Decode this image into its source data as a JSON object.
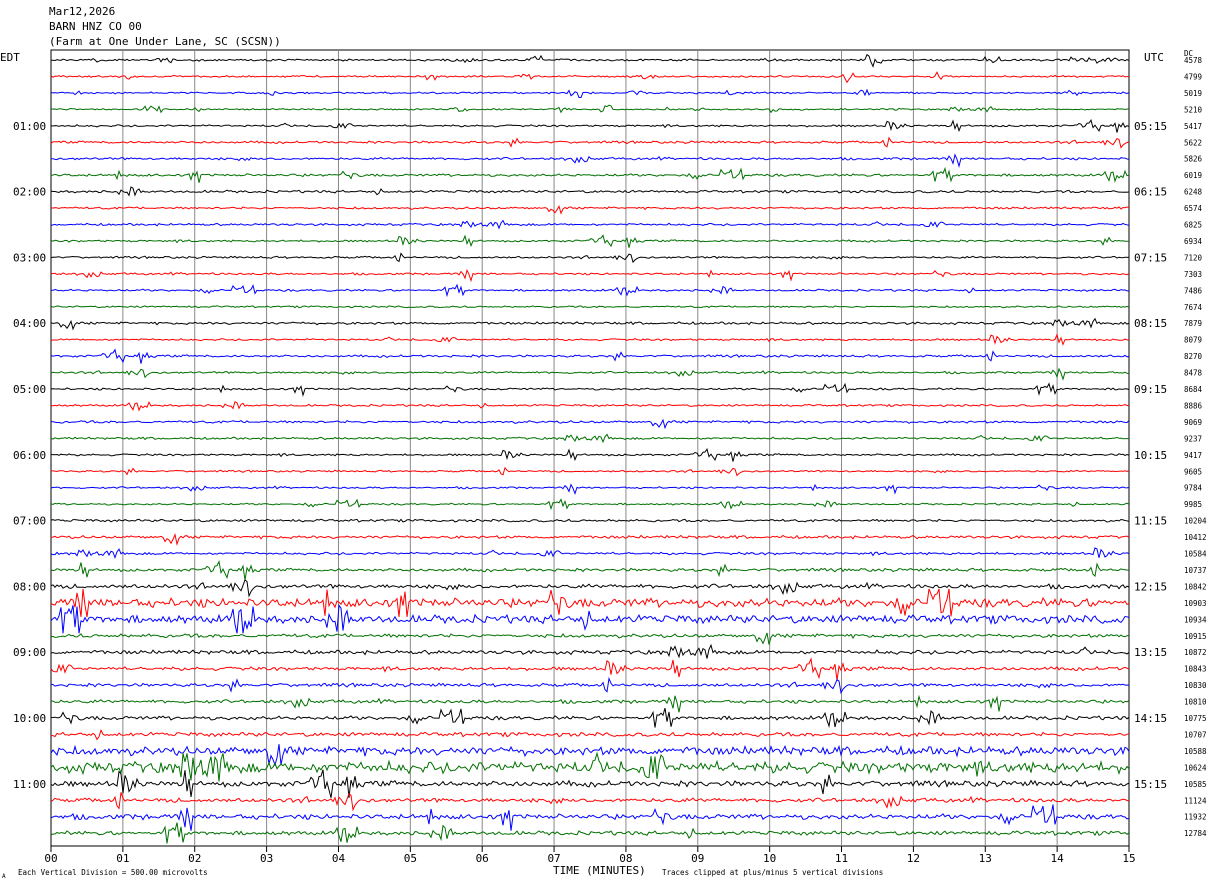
{
  "header": {
    "date": "Mar12,2026",
    "station": "BARN HNZ CO 00",
    "location": "(Farm at One Under Lane, SC (SCSN))"
  },
  "labels": {
    "left_tz": "EDT",
    "right_tz": "UTC",
    "dc": "DC",
    "xlabel": "TIME (MINUTES)",
    "scale_note": "Each Vertical Division =  500.00 microvolts",
    "clip_note": "Traces clipped at plus/minus 5 vertical divisions",
    "corner_mark": "A"
  },
  "colors": [
    "#000000",
    "#ff0000",
    "#0000ff",
    "#007000"
  ],
  "chart_data": {
    "type": "line",
    "title": "",
    "xlabel": "TIME (MINUTES)",
    "x_ticks": [
      "00",
      "01",
      "02",
      "03",
      "04",
      "05",
      "06",
      "07",
      "08",
      "09",
      "10",
      "11",
      "12",
      "13",
      "14",
      "15"
    ],
    "xlim": [
      0,
      15
    ],
    "grid": true,
    "left_hour_labels": [
      "01:00",
      "02:00",
      "03:00",
      "04:00",
      "05:00",
      "06:00",
      "07:00",
      "08:00",
      "09:00",
      "10:00",
      "11:00"
    ],
    "right_hour_labels": [
      "05:15",
      "06:15",
      "07:15",
      "08:15",
      "09:15",
      "10:15",
      "11:15",
      "12:15",
      "13:15",
      "14:15",
      "15:15"
    ],
    "trace_dc_values": [
      "4578",
      "4799",
      "5019",
      "5210",
      "5417",
      "5622",
      "5826",
      "6019",
      "6248",
      "6574",
      "6825",
      "6934",
      "7120",
      "7303",
      "7486",
      "7674",
      "7879",
      "8079",
      "8270",
      "8478",
      "8684",
      "8886",
      "9069",
      "9237",
      "9417",
      "9605",
      "9784",
      "9985",
      "10204",
      "10412",
      "10584",
      "10737",
      "10842",
      "10903",
      "10934",
      "10915",
      "10872",
      "10843",
      "10830",
      "10810",
      "10775",
      "10707",
      "10588",
      "10624",
      "10585",
      "11124",
      "11932",
      "12784"
    ],
    "trace_amplitude": [
      0.8,
      0.7,
      0.7,
      0.6,
      0.8,
      0.9,
      0.9,
      1.0,
      1.0,
      0.9,
      0.9,
      0.8,
      0.8,
      0.8,
      0.8,
      0.7,
      1.0,
      0.8,
      0.9,
      0.8,
      0.8,
      0.8,
      1.0,
      0.9,
      0.8,
      0.7,
      0.7,
      0.7,
      1.0,
      1.2,
      1.0,
      1.2,
      1.6,
      3.5,
      3.2,
      1.5,
      1.6,
      1.4,
      1.3,
      1.3,
      1.5,
      1.6,
      3.5,
      4.5,
      2.2,
      1.6,
      2.0,
      1.6
    ]
  }
}
